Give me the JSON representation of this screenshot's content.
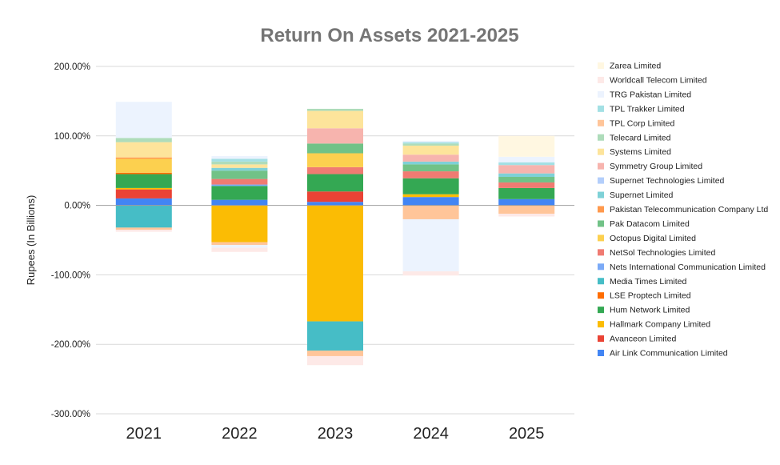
{
  "chart_data": {
    "type": "bar",
    "stacked": true,
    "title": "Return On Assets 2021-2025",
    "ylabel": "Rupees (In Billions)",
    "xlabel": "",
    "ylim": [
      -300,
      200
    ],
    "yticks": [
      200,
      100,
      0,
      -100,
      -200,
      -300
    ],
    "ytick_labels": [
      "200.00%",
      "100.00%",
      "0.00%",
      "-100.00%",
      "-200.00%",
      "-300.00%"
    ],
    "categories": [
      "2021",
      "2022",
      "2023",
      "2024",
      "2025"
    ],
    "grid": true,
    "legend_position": "right",
    "series": [
      {
        "name": "Air Link Communication Limited",
        "color": "#4285f4",
        "values": [
          10,
          8,
          5,
          12,
          9
        ]
      },
      {
        "name": "Avanceon Limited",
        "color": "#ea4335",
        "values": [
          13,
          0,
          15,
          0,
          0
        ]
      },
      {
        "name": "Hallmark Company Limited",
        "color": "#fbbc04",
        "values": [
          2,
          -53,
          -167,
          4,
          0
        ]
      },
      {
        "name": "Hum Network Limited",
        "color": "#34a853",
        "values": [
          20,
          20,
          25,
          23,
          16
        ]
      },
      {
        "name": "LSE Proptech Limited",
        "color": "#ff6d01",
        "values": [
          2,
          0,
          0,
          0,
          0
        ]
      },
      {
        "name": "Media Times Limited",
        "color": "#46bdc6",
        "values": [
          -32,
          0,
          -42,
          0,
          0
        ]
      },
      {
        "name": "Nets International Communication Limited",
        "color": "#7baaf7",
        "values": [
          0,
          2,
          0,
          0,
          0
        ]
      },
      {
        "name": "NetSol Technologies Limited",
        "color": "#f07b72",
        "values": [
          0,
          8,
          10,
          10,
          8
        ]
      },
      {
        "name": "Octopus Digital Limited",
        "color": "#fcd04f",
        "values": [
          20,
          0,
          20,
          0,
          0
        ]
      },
      {
        "name": "Pak Datacom Limited",
        "color": "#71c287",
        "values": [
          0,
          12,
          14,
          10,
          8
        ]
      },
      {
        "name": "Pakistan Telecommunication Company Ltd",
        "color": "#ff994d",
        "values": [
          2,
          0,
          0,
          0,
          0
        ]
      },
      {
        "name": "Supernet Limited",
        "color": "#7ed1d7",
        "values": [
          0,
          4,
          0,
          4,
          5
        ]
      },
      {
        "name": "Supernet Technologies Limited",
        "color": "#b3cefb",
        "values": [
          0,
          0,
          0,
          0,
          0
        ]
      },
      {
        "name": "Symmetry Group Limited",
        "color": "#f7b4ae",
        "values": [
          0,
          0,
          22,
          10,
          12
        ]
      },
      {
        "name": "Systems Limited",
        "color": "#fde49b",
        "values": [
          22,
          5,
          25,
          13,
          0
        ]
      },
      {
        "name": "Telecard Limited",
        "color": "#aedcba",
        "values": [
          6,
          4,
          3,
          3,
          0
        ]
      },
      {
        "name": "TPL Corp Limited",
        "color": "#ffc599",
        "values": [
          -3,
          -4,
          -8,
          -20,
          -12
        ]
      },
      {
        "name": "TPL Trakker Limited",
        "color": "#a3e0e4",
        "values": [
          0,
          4,
          0,
          2,
          4
        ]
      },
      {
        "name": "TRG Pakistan Limited",
        "color": "#ecf3fe",
        "values": [
          52,
          4,
          0,
          2,
          8
        ]
      },
      {
        "name": "Worldcall Telecom Limited",
        "color": "#fde9e7",
        "values": [
          -3,
          -6,
          -13,
          -6,
          -4
        ]
      },
      {
        "name": "Zarea Limited",
        "color": "#fff7e1",
        "values": [
          0,
          0,
          0,
          0,
          30
        ]
      }
    ],
    "extra_negative": {
      "TRG Pakistan Limited": [
        0,
        -4,
        0,
        -75,
        0
      ]
    }
  }
}
